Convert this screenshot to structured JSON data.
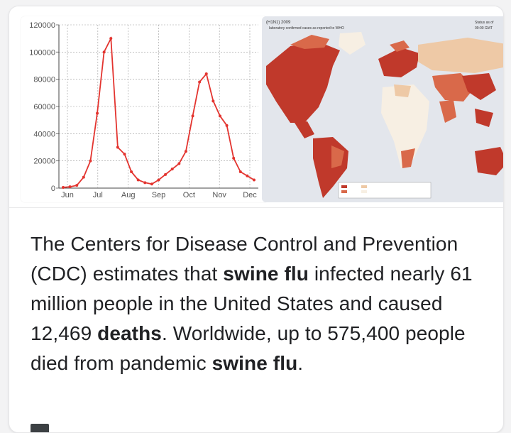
{
  "carousel": {
    "chart": {
      "chart_data": {
        "type": "line",
        "title": "",
        "xlabel": "",
        "ylabel": "",
        "ylim": [
          0,
          120000
        ],
        "yticks": [
          0,
          20000,
          40000,
          60000,
          80000,
          100000,
          120000
        ],
        "xticks": [
          "Jun",
          "Jul",
          "Aug",
          "Sep",
          "Oct",
          "Nov",
          "Dec"
        ],
        "grid": true,
        "color": "#e3342f",
        "series": [
          {
            "values": [
              500,
              1000,
              2000,
              8000,
              20000,
              55000,
              100000,
              110000,
              30000,
              25000,
              12000,
              6000,
              4000,
              3000,
              6000,
              10000,
              14000,
              18000,
              27000,
              53000,
              78000,
              84000,
              64000,
              53000,
              46000,
              22000,
              12000,
              9000,
              6000
            ]
          }
        ]
      }
    },
    "map": {
      "header_left": "(H1N1) 2009",
      "header_sub": "laboratory confirmed cases as reported to WHO",
      "header_right": "Status as of",
      "header_right2": "09:00 GMT",
      "colors": {
        "ocean": "#e3e6ec",
        "high": "#c0392b",
        "mid": "#d9694a",
        "low": "#eec9a6",
        "none": "#f7efe3"
      }
    }
  },
  "snippet": {
    "part1": "The Centers for Disease Control and Prevention (CDC) estimates that ",
    "bold1": "swine flu",
    "part2": " infected nearly 61 million people in the United States and caused 12,469 ",
    "bold2": "deaths",
    "part3": ". Worldwide, up to 575,400 people died from pandemic ",
    "bold3": "swine flu",
    "part4": "."
  }
}
